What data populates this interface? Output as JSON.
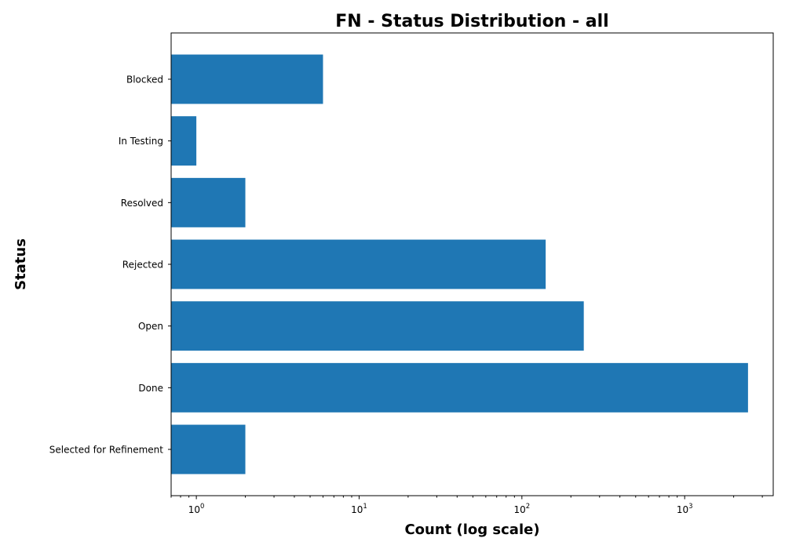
{
  "chart_data": {
    "type": "bar",
    "orientation": "horizontal",
    "title": "FN - Status Distribution - all",
    "xlabel": "Count (log scale)",
    "ylabel": "Status",
    "x_scale": "log",
    "xlim": [
      0.7,
      3500
    ],
    "x_ticks": [
      {
        "value": 1,
        "base": "10",
        "exp": "0"
      },
      {
        "value": 10,
        "base": "10",
        "exp": "1"
      },
      {
        "value": 100,
        "base": "10",
        "exp": "2"
      },
      {
        "value": 1000,
        "base": "10",
        "exp": "3"
      }
    ],
    "categories": [
      "Selected for Refinement",
      "Done",
      "Open",
      "Rejected",
      "Resolved",
      "In Testing",
      "Blocked"
    ],
    "values": [
      2,
      2450,
      240,
      140,
      2,
      1,
      6
    ],
    "bar_color": "#1f77b4",
    "grid": false,
    "legend": false
  }
}
